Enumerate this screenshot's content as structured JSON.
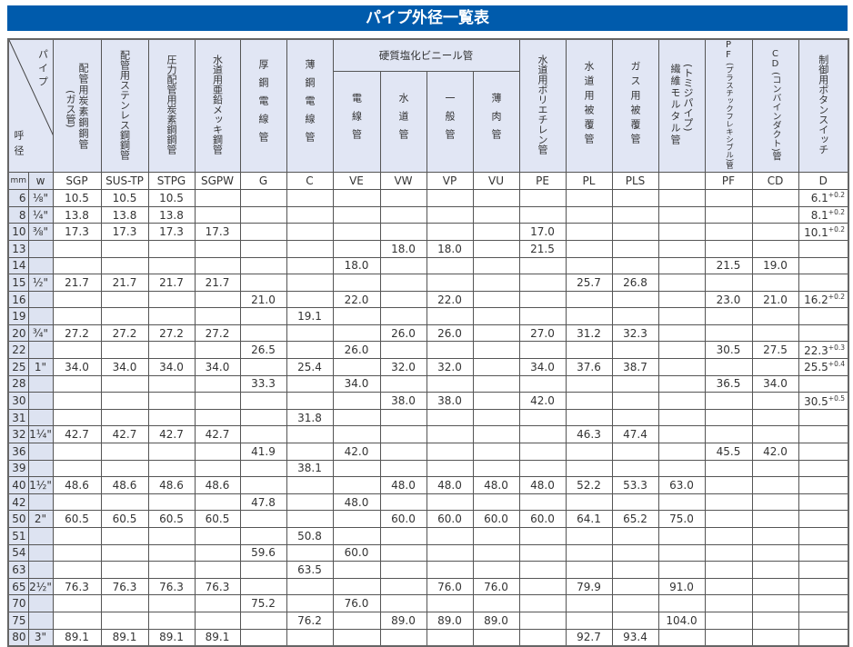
{
  "title": "パイプ外径一覧表",
  "corner": {
    "pipe": "パイプ",
    "nominal": "呼径"
  },
  "group_pvc": "硬質塩化ビニール管",
  "headers": {
    "SGP": {
      "main": "配管用炭素鋼鋼管",
      "sub": "(ガス管)"
    },
    "SUS": "配管用ステンレス鋼鋼管",
    "STPG": "圧力配管用炭素鋼鋼管",
    "SGPW": "水道用亜鉛メッキ鋼管",
    "G": "厚鋼電線管",
    "C": "薄鋼電線管",
    "VE": "電線管",
    "VW": "水道管",
    "VP": "一般管",
    "VU": "薄肉管",
    "PE": "水道用ポリエチレン管",
    "PL": "水道用被覆管",
    "PLS": "ガス用被覆管",
    "T": {
      "main": "繊維モルタル管",
      "sub": "(トミジパイプ)"
    },
    "PF": {
      "code": "PF",
      "sub": "(プラスチックフレキシブル)管"
    },
    "CD": {
      "code": "CD",
      "sub": "(コンバインダクト)管"
    },
    "D": "制御用ボタンスイッチ"
  },
  "unit_mm": "mm",
  "unit_w": "w",
  "codes": [
    "SGP",
    "SUS-TP",
    "STPG",
    "SGPW",
    "G",
    "C",
    "VE",
    "VW",
    "VP",
    "VU",
    "PE",
    "PL",
    "PLS",
    "",
    "PF",
    "CD",
    "D"
  ],
  "rows": [
    {
      "mm": "6",
      "w": "⅛\"",
      "cells": [
        "10.5",
        "10.5",
        "10.5",
        "",
        "",
        "",
        "",
        "",
        "",
        "",
        "",
        "",
        "",
        "",
        "",
        "",
        ""
      ],
      "d": {
        "value": "6.1",
        "tol": "+0.2"
      }
    },
    {
      "mm": "8",
      "w": "¼\"",
      "cells": [
        "13.8",
        "13.8",
        "13.8",
        "",
        "",
        "",
        "",
        "",
        "",
        "",
        "",
        "",
        "",
        "",
        "",
        "",
        ""
      ],
      "d": {
        "value": "8.1",
        "tol": "+0.2"
      }
    },
    {
      "mm": "10",
      "w": "⅜\"",
      "cells": [
        "17.3",
        "17.3",
        "17.3",
        "17.3",
        "",
        "",
        "",
        "",
        "",
        "",
        "17.0",
        "",
        "",
        "",
        "",
        "",
        ""
      ],
      "d": {
        "value": "10.1",
        "tol": "+0.2"
      }
    },
    {
      "mm": "13",
      "w": "",
      "cells": [
        "",
        "",
        "",
        "",
        "",
        "",
        "",
        "18.0",
        "18.0",
        "",
        "21.5",
        "",
        "",
        "",
        "",
        "",
        ""
      ]
    },
    {
      "mm": "14",
      "w": "",
      "cells": [
        "",
        "",
        "",
        "",
        "",
        "",
        "18.0",
        "",
        "",
        "",
        "",
        "",
        "",
        "",
        "21.5",
        "19.0",
        ""
      ]
    },
    {
      "mm": "15",
      "w": "½\"",
      "cells": [
        "21.7",
        "21.7",
        "21.7",
        "21.7",
        "",
        "",
        "",
        "",
        "",
        "",
        "",
        "25.7",
        "26.8",
        "",
        "",
        "",
        ""
      ]
    },
    {
      "mm": "16",
      "w": "",
      "cells": [
        "",
        "",
        "",
        "",
        "21.0",
        "",
        "22.0",
        "",
        "22.0",
        "",
        "",
        "",
        "",
        "",
        "23.0",
        "21.0",
        ""
      ],
      "d": {
        "value": "16.2",
        "tol": "+0.2"
      }
    },
    {
      "mm": "19",
      "w": "",
      "cells": [
        "",
        "",
        "",
        "",
        "",
        "19.1",
        "",
        "",
        "",
        "",
        "",
        "",
        "",
        "",
        "",
        "",
        ""
      ]
    },
    {
      "mm": "20",
      "w": "¾\"",
      "cells": [
        "27.2",
        "27.2",
        "27.2",
        "27.2",
        "",
        "",
        "",
        "26.0",
        "26.0",
        "",
        "27.0",
        "31.2",
        "32.3",
        "",
        "",
        "",
        ""
      ]
    },
    {
      "mm": "22",
      "w": "",
      "cells": [
        "",
        "",
        "",
        "",
        "26.5",
        "",
        "26.0",
        "",
        "",
        "",
        "",
        "",
        "",
        "",
        "30.5",
        "27.5",
        ""
      ],
      "d": {
        "value": "22.3",
        "tol": "+0.3"
      }
    },
    {
      "mm": "25",
      "w": "1\"",
      "cells": [
        "34.0",
        "34.0",
        "34.0",
        "34.0",
        "",
        "25.4",
        "",
        "32.0",
        "32.0",
        "",
        "34.0",
        "37.6",
        "38.7",
        "",
        "",
        "",
        ""
      ],
      "d": {
        "value": "25.5",
        "tol": "+0.4"
      }
    },
    {
      "mm": "28",
      "w": "",
      "cells": [
        "",
        "",
        "",
        "",
        "33.3",
        "",
        "34.0",
        "",
        "",
        "",
        "",
        "",
        "",
        "",
        "36.5",
        "34.0",
        ""
      ]
    },
    {
      "mm": "30",
      "w": "",
      "cells": [
        "",
        "",
        "",
        "",
        "",
        "",
        "",
        "38.0",
        "38.0",
        "",
        "42.0",
        "",
        "",
        "",
        "",
        "",
        ""
      ],
      "d": {
        "value": "30.5",
        "tol": "+0.5"
      }
    },
    {
      "mm": "31",
      "w": "",
      "cells": [
        "",
        "",
        "",
        "",
        "",
        "31.8",
        "",
        "",
        "",
        "",
        "",
        "",
        "",
        "",
        "",
        "",
        ""
      ]
    },
    {
      "mm": "32",
      "w": "1¼\"",
      "cells": [
        "42.7",
        "42.7",
        "42.7",
        "42.7",
        "",
        "",
        "",
        "",
        "",
        "",
        "",
        "46.3",
        "47.4",
        "",
        "",
        "",
        ""
      ]
    },
    {
      "mm": "36",
      "w": "",
      "cells": [
        "",
        "",
        "",
        "",
        "41.9",
        "",
        "42.0",
        "",
        "",
        "",
        "",
        "",
        "",
        "",
        "45.5",
        "42.0",
        ""
      ]
    },
    {
      "mm": "39",
      "w": "",
      "cells": [
        "",
        "",
        "",
        "",
        "",
        "38.1",
        "",
        "",
        "",
        "",
        "",
        "",
        "",
        "",
        "",
        "",
        ""
      ]
    },
    {
      "mm": "40",
      "w": "1½\"",
      "cells": [
        "48.6",
        "48.6",
        "48.6",
        "48.6",
        "",
        "",
        "",
        "48.0",
        "48.0",
        "48.0",
        "48.0",
        "52.2",
        "53.3",
        "63.0",
        "",
        "",
        ""
      ]
    },
    {
      "mm": "42",
      "w": "",
      "cells": [
        "",
        "",
        "",
        "",
        "47.8",
        "",
        "48.0",
        "",
        "",
        "",
        "",
        "",
        "",
        "",
        "",
        "",
        ""
      ]
    },
    {
      "mm": "50",
      "w": "2\"",
      "cells": [
        "60.5",
        "60.5",
        "60.5",
        "60.5",
        "",
        "",
        "",
        "60.0",
        "60.0",
        "60.0",
        "60.0",
        "64.1",
        "65.2",
        "75.0",
        "",
        "",
        ""
      ]
    },
    {
      "mm": "51",
      "w": "",
      "cells": [
        "",
        "",
        "",
        "",
        "",
        "50.8",
        "",
        "",
        "",
        "",
        "",
        "",
        "",
        "",
        "",
        "",
        ""
      ]
    },
    {
      "mm": "54",
      "w": "",
      "cells": [
        "",
        "",
        "",
        "",
        "59.6",
        "",
        "60.0",
        "",
        "",
        "",
        "",
        "",
        "",
        "",
        "",
        "",
        ""
      ]
    },
    {
      "mm": "63",
      "w": "",
      "cells": [
        "",
        "",
        "",
        "",
        "",
        "63.5",
        "",
        "",
        "",
        "",
        "",
        "",
        "",
        "",
        "",
        "",
        ""
      ]
    },
    {
      "mm": "65",
      "w": "2½\"",
      "cells": [
        "76.3",
        "76.3",
        "76.3",
        "76.3",
        "",
        "",
        "",
        "",
        "76.0",
        "76.0",
        "",
        "79.9",
        "",
        "91.0",
        "",
        "",
        ""
      ]
    },
    {
      "mm": "70",
      "w": "",
      "cells": [
        "",
        "",
        "",
        "",
        "75.2",
        "",
        "76.0",
        "",
        "",
        "",
        "",
        "",
        "",
        "",
        "",
        "",
        ""
      ]
    },
    {
      "mm": "75",
      "w": "",
      "cells": [
        "",
        "",
        "",
        "",
        "",
        "76.2",
        "",
        "89.0",
        "89.0",
        "89.0",
        "",
        "",
        "",
        "104.0",
        "",
        "",
        ""
      ]
    },
    {
      "mm": "80",
      "w": "3\"",
      "cells": [
        "89.1",
        "89.1",
        "89.1",
        "89.1",
        "",
        "",
        "",
        "",
        "",
        "",
        "",
        "92.7",
        "93.4",
        "",
        "",
        "",
        ""
      ]
    }
  ],
  "colors": {
    "title_bg": "#005bac",
    "header_bg": "#e1e6f4",
    "label_bg": "#dde3f1",
    "border": "#555555"
  }
}
